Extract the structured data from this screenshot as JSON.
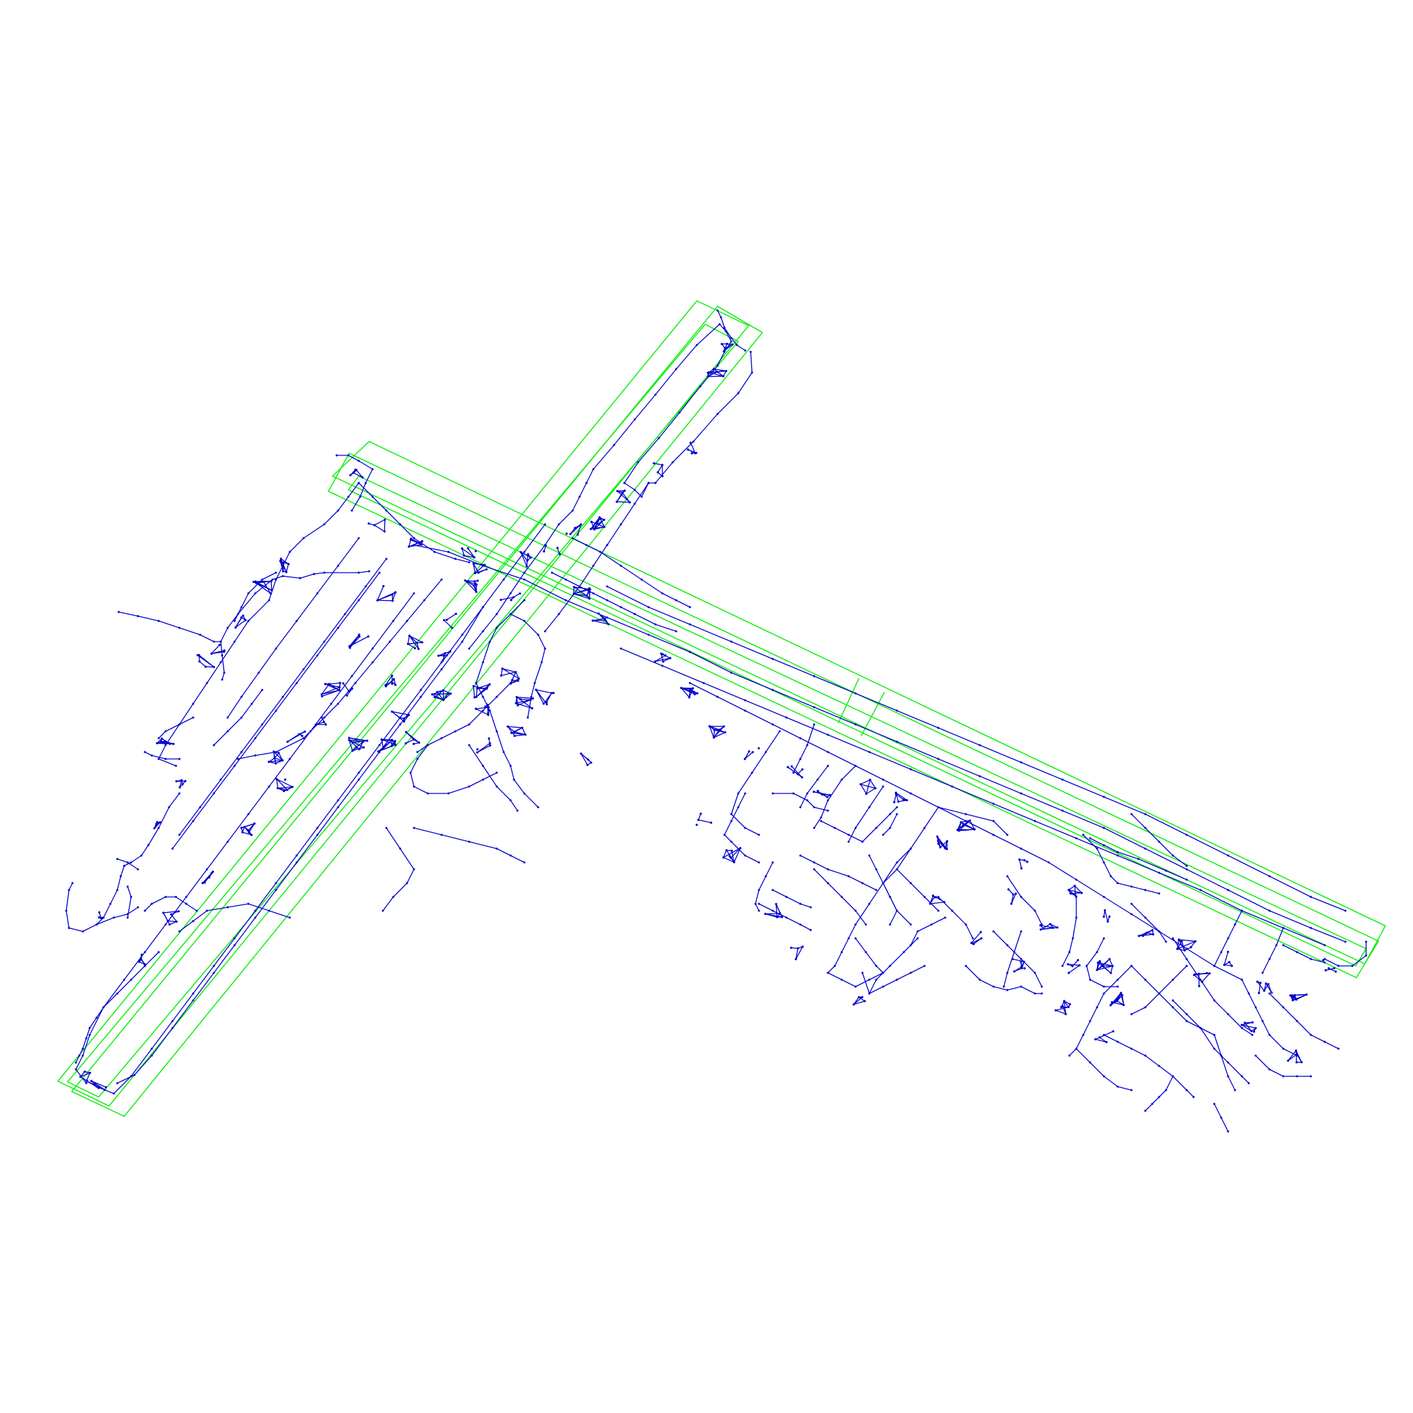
{
  "map": {
    "background": "#ffffff",
    "colors": {
      "runway_outline": "#00ee00",
      "road_network": "#0000cc"
    },
    "layers": [
      {
        "name": "runway-outlines",
        "kind": "polygon-outlines",
        "count": 8
      },
      {
        "name": "road-graph",
        "kind": "edges-with-nodes"
      }
    ]
  }
}
